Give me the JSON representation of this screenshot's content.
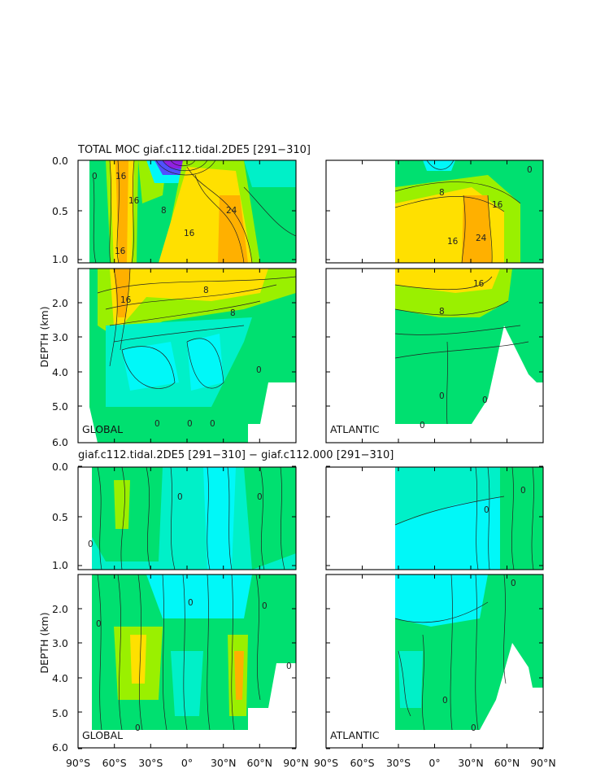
{
  "chart_data": {
    "type": "heatmap",
    "titles": {
      "top": "TOTAL MOC giaf.c112.tidal.2DE5 [291−310]",
      "bottom": "giaf.c112.tidal.2DE5 [291−310] − giaf.c112.000 [291−310]"
    },
    "ylabel": "DEPTH (km)",
    "ytick_labels_upper": [
      "0.0",
      "0.5",
      "1.0"
    ],
    "ytick_labels_lower": [
      "2.0",
      "3.0",
      "4.0",
      "5.0",
      "6.0"
    ],
    "xtick_labels": [
      "90°S",
      "60°S",
      "30°S",
      "0°",
      "30°N",
      "60°N",
      "90°N"
    ],
    "basin_labels": [
      "GLOBAL",
      "ATLANTIC"
    ],
    "xlim": [
      -90,
      90
    ],
    "depth_range_km": [
      0,
      6
    ],
    "contour_labels": {
      "moc_global": [
        "0",
        "16",
        "16",
        "16",
        "8",
        "16",
        "24",
        "16",
        "8",
        "8",
        "0",
        "0",
        "0",
        "0"
      ],
      "moc_atlantic": [
        "0",
        "8",
        "16",
        "16",
        "24",
        "16",
        "8",
        "0",
        "0",
        "0"
      ],
      "diff_global": [
        "0",
        "0",
        "0",
        "0",
        "0",
        "0",
        "0",
        "0"
      ],
      "diff_atlantic": [
        "0",
        "0",
        "0",
        "0",
        "0"
      ]
    },
    "colors": {
      "max": "#ffb000",
      "high": "#ffe000",
      "mid": "#9af000",
      "low": "#00e070",
      "zero": "#00f0c8",
      "neg": "#00f8f8",
      "min": "#7000e0"
    }
  }
}
